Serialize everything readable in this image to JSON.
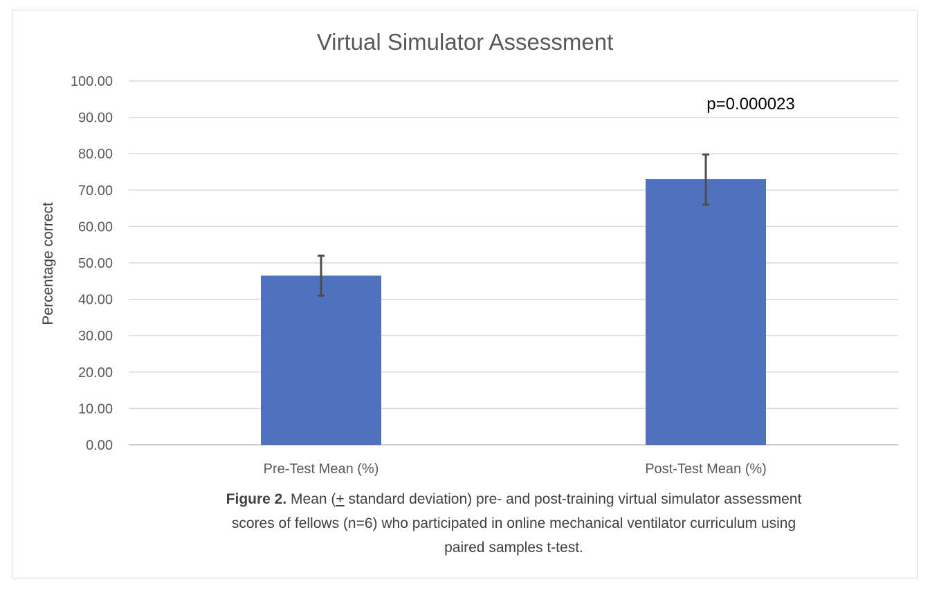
{
  "chart_data": {
    "type": "bar",
    "title": "Virtual Simulator Assessment",
    "xlabel": "",
    "ylabel": "Percentage correct",
    "categories": [
      "Pre-Test Mean (%)",
      "Post-Test Mean (%)"
    ],
    "values": [
      46.5,
      73.0
    ],
    "error_low": [
      41.0,
      66.0
    ],
    "error_high": [
      52.0,
      79.8
    ],
    "ylim": [
      0,
      100
    ],
    "yticks": [
      "0.00",
      "10.00",
      "20.00",
      "30.00",
      "40.00",
      "50.00",
      "60.00",
      "70.00",
      "80.00",
      "90.00",
      "100.00"
    ],
    "grid": true,
    "annotation": "p=0.000023",
    "bar_color": "#4f71be",
    "error_color": "#4d4d4d"
  },
  "caption": {
    "label": "Figure 2.",
    "text_before": " Mean (",
    "plus_minus": "+",
    "line1_rest": " standard deviation) pre- and post-training virtual simulator assessment",
    "line2": "scores of fellows (n=6) who participated in online mechanical ventilator curriculum using",
    "line3": "paired samples t-test."
  }
}
